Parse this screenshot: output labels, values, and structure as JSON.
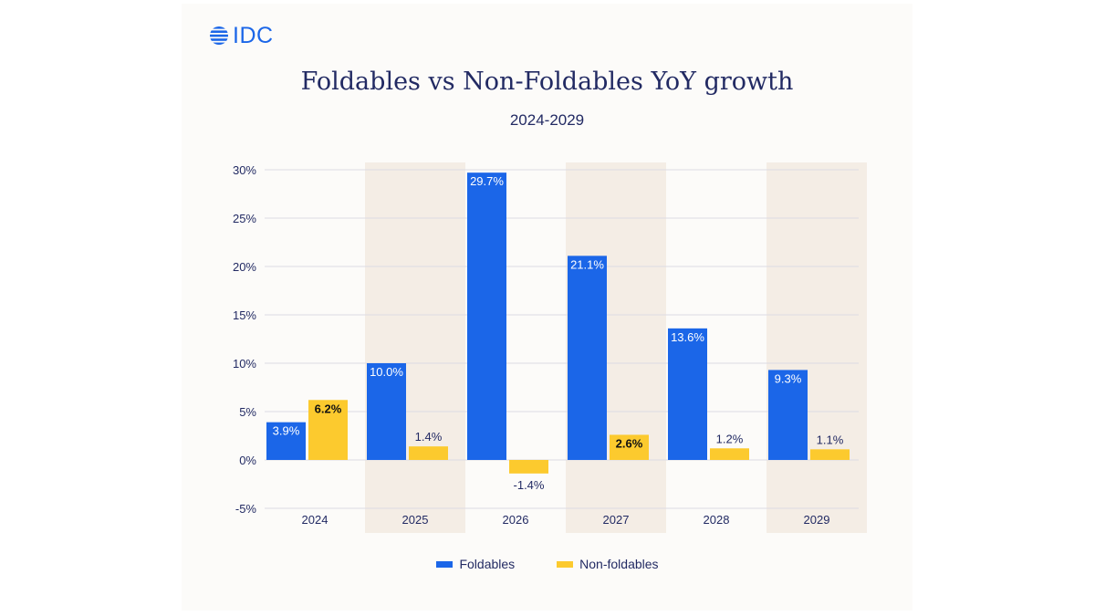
{
  "brand": {
    "name": "IDC",
    "color": "#1b66e8"
  },
  "colors": {
    "foldables": "#1b66e8",
    "non_foldables": "#fcca2e",
    "band": "#f4ede5",
    "grid": "#dcdbe4",
    "text": "#222a63"
  },
  "chart_data": {
    "type": "bar",
    "title": "Foldables vs Non-Foldables YoY growth",
    "subtitle": "2024-2029",
    "categories": [
      "2024",
      "2025",
      "2026",
      "2027",
      "2028",
      "2029"
    ],
    "series": [
      {
        "name": "Foldables",
        "values": [
          3.9,
          10.0,
          29.7,
          21.1,
          13.6,
          9.3
        ],
        "labels": [
          "3.9%",
          "10.0%",
          "29.7%",
          "21.1%",
          "13.6%",
          "9.3%"
        ]
      },
      {
        "name": "Non-foldables",
        "values": [
          6.2,
          1.4,
          -1.4,
          2.6,
          1.2,
          1.1
        ],
        "labels": [
          "6.2%",
          "1.4%",
          "-1.4%",
          "2.6%",
          "1.2%",
          "1.1%"
        ]
      }
    ],
    "yticks": [
      30,
      25,
      20,
      15,
      10,
      5,
      0,
      -5
    ],
    "ytick_labels": [
      "30%",
      "25%",
      "20%",
      "15%",
      "10%",
      "5%",
      "0%",
      "-5%"
    ],
    "ylim": [
      -5,
      30
    ],
    "grid": true,
    "legend_position": "bottom-center"
  }
}
